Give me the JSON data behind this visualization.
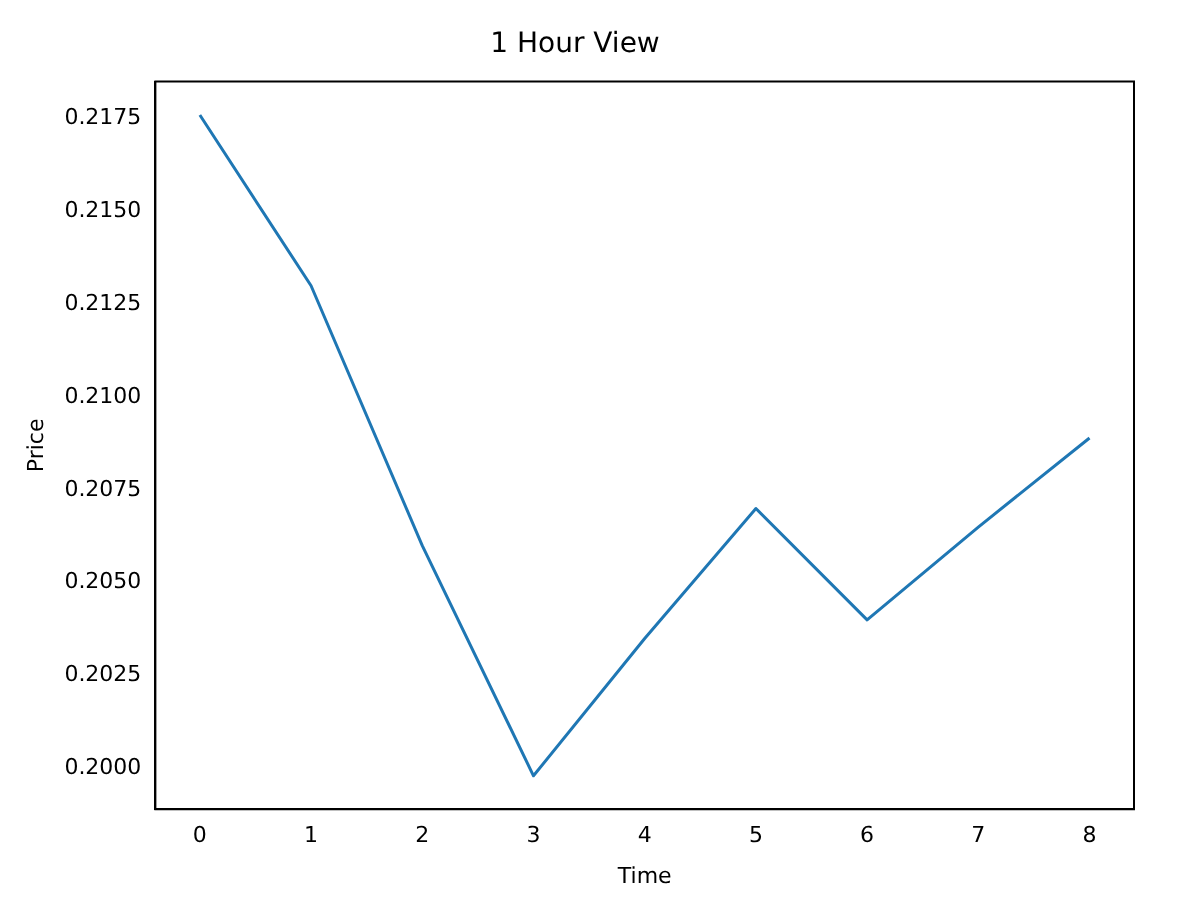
{
  "chart_data": {
    "type": "line",
    "title": "1 Hour View",
    "xlabel": "Time",
    "ylabel": "Price",
    "x": [
      0,
      1,
      2,
      3,
      4,
      5,
      6,
      7,
      8
    ],
    "series": [
      {
        "color": "#1f77b4",
        "values": [
          0.2176,
          0.213,
          0.206,
          0.1998,
          0.2035,
          0.207,
          0.204,
          0.2065,
          0.2089
        ]
      }
    ],
    "xlim": [
      -0.4,
      8.4
    ],
    "xticks": [
      0,
      1,
      2,
      3,
      4,
      5,
      6,
      7,
      8
    ],
    "ylim": [
      0.1989,
      0.2185
    ],
    "yticks": [
      {
        "value": 0.2,
        "label": "0.2000"
      },
      0.2025,
      {
        "value": 0.205,
        "label": "0.2050"
      },
      0.2075,
      {
        "value": 0.21,
        "label": "0.2100"
      },
      0.2125,
      {
        "value": 0.215,
        "label": "0.2150"
      },
      0.2175
    ],
    "grid": false,
    "legend": false,
    "marker": "none",
    "line_style": "solid"
  }
}
